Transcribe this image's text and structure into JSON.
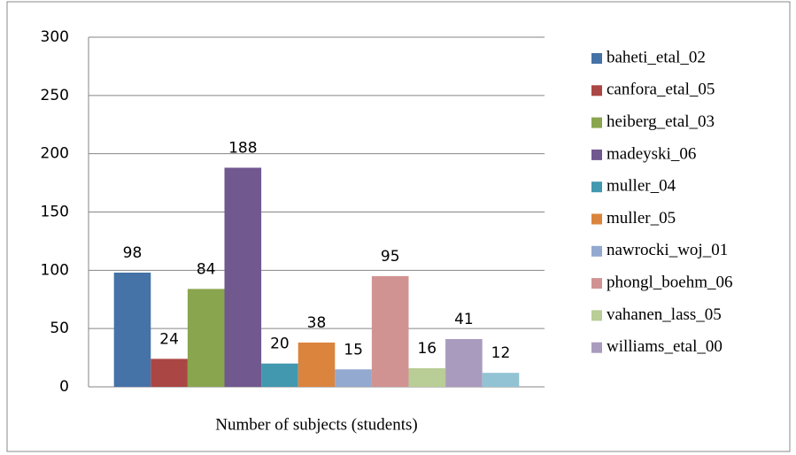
{
  "chart_data": {
    "type": "bar",
    "categories": [
      "Number of subjects (students)"
    ],
    "series": [
      {
        "name": "baheti_etal_02",
        "color": "#4572A7",
        "values": [
          98
        ]
      },
      {
        "name": "canfora_etal_05",
        "color": "#AA4643",
        "values": [
          24
        ]
      },
      {
        "name": "heiberg_etal_03",
        "color": "#89A54E",
        "values": [
          84
        ]
      },
      {
        "name": "madeyski_06",
        "color": "#71588F",
        "values": [
          188
        ]
      },
      {
        "name": "muller_04",
        "color": "#4198AF",
        "values": [
          20
        ]
      },
      {
        "name": "muller_05",
        "color": "#DB843D",
        "values": [
          38
        ]
      },
      {
        "name": "nawrocki_woj_01",
        "color": "#93A9CF",
        "values": [
          15
        ]
      },
      {
        "name": "phongl_boehm_06",
        "color": "#D19392",
        "values": [
          95
        ]
      },
      {
        "name": "vahanen_lass_05",
        "color": "#B9CD96",
        "values": [
          16
        ]
      },
      {
        "name": "williams_etal_00",
        "color": "#A99BBD",
        "values": [
          41
        ]
      },
      {
        "name": null,
        "color": "#91C3D5",
        "values": [
          12
        ]
      }
    ],
    "ylim": [
      0,
      300
    ],
    "yticks": [
      0,
      50,
      100,
      150,
      200,
      250,
      300
    ],
    "grid": true,
    "legend": "right"
  }
}
